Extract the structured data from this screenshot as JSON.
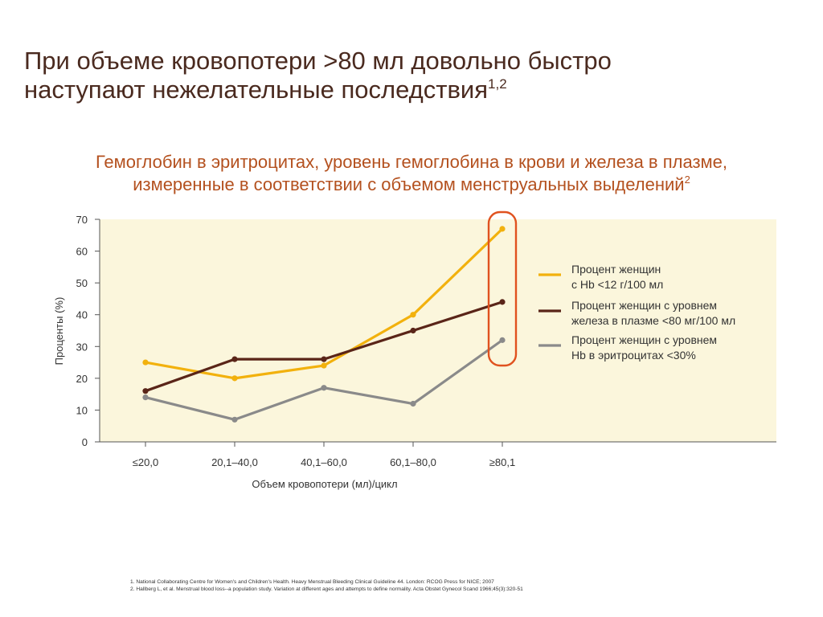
{
  "slide": {
    "title_line1": "При объеме кровопотери >80 мл довольно быстро",
    "title_line2": "наступают нежелательные последствия",
    "title_sup": "1,2"
  },
  "chart_data": {
    "type": "line",
    "title_line1": "Гемоглобин в эритроцитах, уровень гемоглобина в крови и железа в плазме,",
    "title_line2": "измеренные в соответствии с объемом менструальных выделений",
    "title_sup": "2",
    "xlabel": "Объем кровопотери (мл)/цикл",
    "ylabel": "Проценты (%)",
    "categories": [
      "≤20,0",
      "20,1–40,0",
      "40,1–60,0",
      "60,1–80,0",
      "≥80,1"
    ],
    "ylim": [
      0,
      70
    ],
    "yticks": [
      "0",
      "10",
      "20",
      "30",
      "40",
      "50",
      "60",
      "70"
    ],
    "grid": false,
    "legend_position": "right",
    "highlight_category": "≥80,1",
    "highlight_color": "#e0521f",
    "plot_background": "#fbf6dc",
    "series": [
      {
        "name_line1": "Процент женщин",
        "name_line2": "с Hb <12 г/100 мл",
        "color": "#f2b10d",
        "values": [
          25,
          20,
          24,
          40,
          67
        ]
      },
      {
        "name_line1": "Процент женщин с уровнем",
        "name_line2": "железа в плазме <80 мг/100 мл",
        "color": "#5a2518",
        "values": [
          16,
          26,
          26,
          35,
          44
        ]
      },
      {
        "name_line1": "Процент женщин с уровнем",
        "name_line2": "Hb в эритроцитах <30%",
        "color": "#8a8a8a",
        "values": [
          14,
          7,
          17,
          12,
          32
        ]
      }
    ]
  },
  "references": [
    "1. National Collaborating Centre for Women's and Children's Health. Heavy Menstrual Bleeding Clinical Guideline 44. London: RCOG Press for NICE; 2007",
    "2. Hallberg L, et al. Menstrual blood loss--a population study. Variation at different ages and attempts to define normality. Acta Obstet Gynecol Scand 1966;45(3):320-51"
  ]
}
